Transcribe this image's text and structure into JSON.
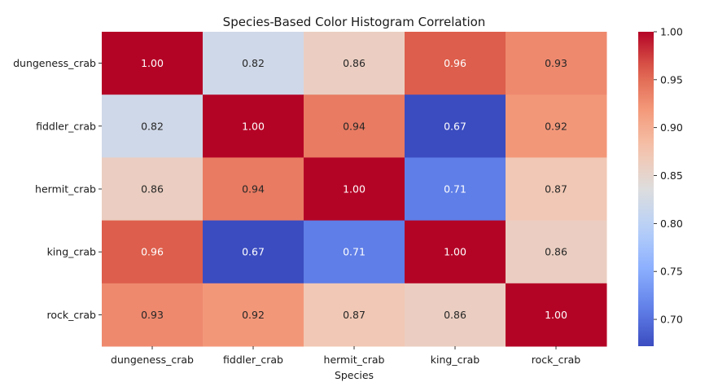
{
  "chart_data": {
    "type": "heatmap",
    "title": "Species-Based Color Histogram Correlation",
    "xlabel": "Species",
    "ylabel": "",
    "x_categories": [
      "dungeness_crab",
      "fiddler_crab",
      "hermit_crab",
      "king_crab",
      "rock_crab"
    ],
    "y_categories": [
      "dungeness_crab",
      "fiddler_crab",
      "hermit_crab",
      "king_crab",
      "rock_crab"
    ],
    "values": [
      [
        1.0,
        0.82,
        0.86,
        0.96,
        0.93
      ],
      [
        0.82,
        1.0,
        0.94,
        0.67,
        0.92
      ],
      [
        0.86,
        0.94,
        1.0,
        0.71,
        0.87
      ],
      [
        0.96,
        0.67,
        0.71,
        1.0,
        0.86
      ],
      [
        0.93,
        0.92,
        0.87,
        0.86,
        1.0
      ]
    ],
    "cell_labels": [
      [
        "1.00",
        "0.82",
        "0.86",
        "0.96",
        "0.93"
      ],
      [
        "0.82",
        "1.00",
        "0.94",
        "0.67",
        "0.92"
      ],
      [
        "0.86",
        "0.94",
        "1.00",
        "0.71",
        "0.87"
      ],
      [
        "0.96",
        "0.67",
        "0.71",
        "1.00",
        "0.86"
      ],
      [
        "0.93",
        "0.92",
        "0.87",
        "0.86",
        "1.00"
      ]
    ],
    "colormap": "coolwarm",
    "colorbar": {
      "min": 0.672,
      "max": 1.0,
      "ticks": [
        0.7,
        0.75,
        0.8,
        0.85,
        0.9,
        0.95,
        1.0
      ],
      "tick_labels": [
        "0.70",
        "0.75",
        "0.80",
        "0.85",
        "0.90",
        "0.95",
        "1.00"
      ]
    },
    "legend_placement": "right"
  }
}
